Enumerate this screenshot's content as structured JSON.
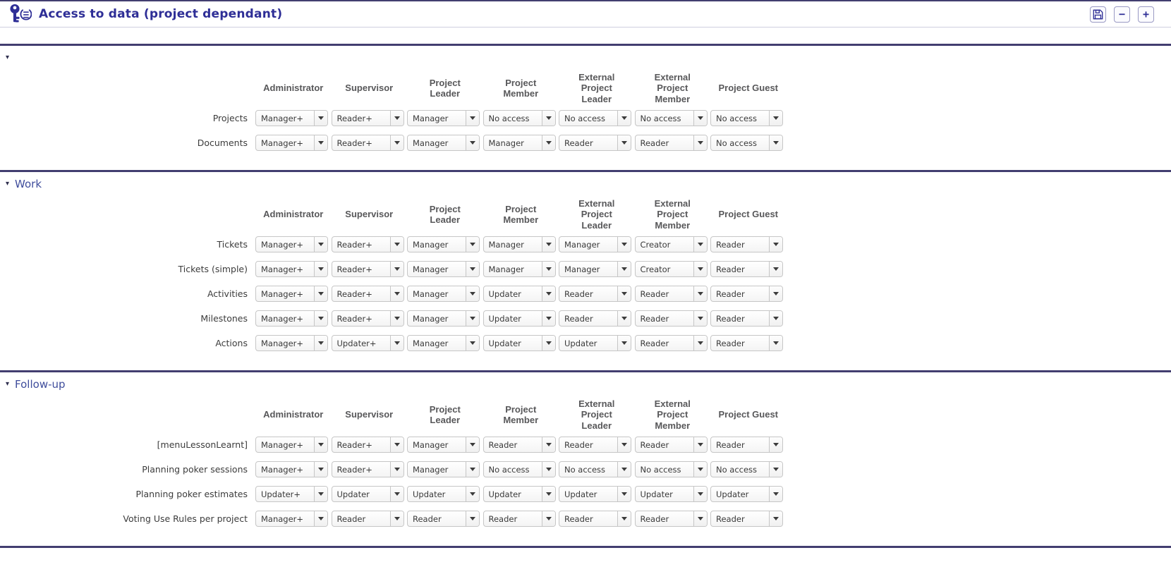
{
  "header": {
    "title": "Access to data (project dependant)",
    "app_icon": "key-gear-icon",
    "save_button": {
      "icon": "floppy-icon"
    },
    "collapse_all_glyph": "−",
    "expand_all_glyph": "+"
  },
  "columns": [
    [
      "Administrator"
    ],
    [
      "Supervisor"
    ],
    [
      "Project",
      "Leader"
    ],
    [
      "Project",
      "Member"
    ],
    [
      "External",
      "Project",
      "Leader"
    ],
    [
      "External",
      "Project",
      "Member"
    ],
    [
      "Project Guest"
    ]
  ],
  "sections": [
    {
      "title": "",
      "rows": [
        {
          "label": "Projects",
          "values": [
            "Manager+",
            "Reader+",
            "Manager",
            "No access",
            "No access",
            "No access",
            "No access"
          ]
        },
        {
          "label": "Documents",
          "values": [
            "Manager+",
            "Reader+",
            "Manager",
            "Manager",
            "Reader",
            "Reader",
            "No access"
          ]
        }
      ]
    },
    {
      "title": "Work",
      "rows": [
        {
          "label": "Tickets",
          "values": [
            "Manager+",
            "Reader+",
            "Manager",
            "Manager",
            "Manager",
            "Creator",
            "Reader"
          ]
        },
        {
          "label": "Tickets (simple)",
          "values": [
            "Manager+",
            "Reader+",
            "Manager",
            "Manager",
            "Manager",
            "Creator",
            "Reader"
          ]
        },
        {
          "label": "Activities",
          "values": [
            "Manager+",
            "Reader+",
            "Manager",
            "Updater",
            "Reader",
            "Reader",
            "Reader"
          ]
        },
        {
          "label": "Milestones",
          "values": [
            "Manager+",
            "Reader+",
            "Manager",
            "Updater",
            "Reader",
            "Reader",
            "Reader"
          ]
        },
        {
          "label": "Actions",
          "values": [
            "Manager+",
            "Updater+",
            "Manager",
            "Updater",
            "Updater",
            "Reader",
            "Reader"
          ]
        }
      ]
    },
    {
      "title": "Follow-up",
      "rows": [
        {
          "label": "[menuLessonLearnt]",
          "values": [
            "Manager+",
            "Reader+",
            "Manager",
            "Reader",
            "Reader",
            "Reader",
            "Reader"
          ]
        },
        {
          "label": "Planning poker sessions",
          "values": [
            "Manager+",
            "Reader+",
            "Manager",
            "No access",
            "No access",
            "No access",
            "No access"
          ]
        },
        {
          "label": "Planning poker estimates",
          "values": [
            "Updater+",
            "Updater",
            "Updater",
            "Updater",
            "Updater",
            "Updater",
            "Updater"
          ]
        },
        {
          "label": "Voting Use Rules per project",
          "values": [
            "Manager+",
            "Reader",
            "Reader",
            "Reader",
            "Reader",
            "Reader",
            "Reader"
          ]
        }
      ]
    }
  ],
  "colors": {
    "accent": "#2e2e96",
    "section_rule": "#423e70",
    "section_title": "#3f4d9c",
    "column_header_text": "#58585a",
    "row_label_text": "#3c3c3c",
    "select_border": "#c6c6c6",
    "select_text": "#3a3a3a"
  }
}
